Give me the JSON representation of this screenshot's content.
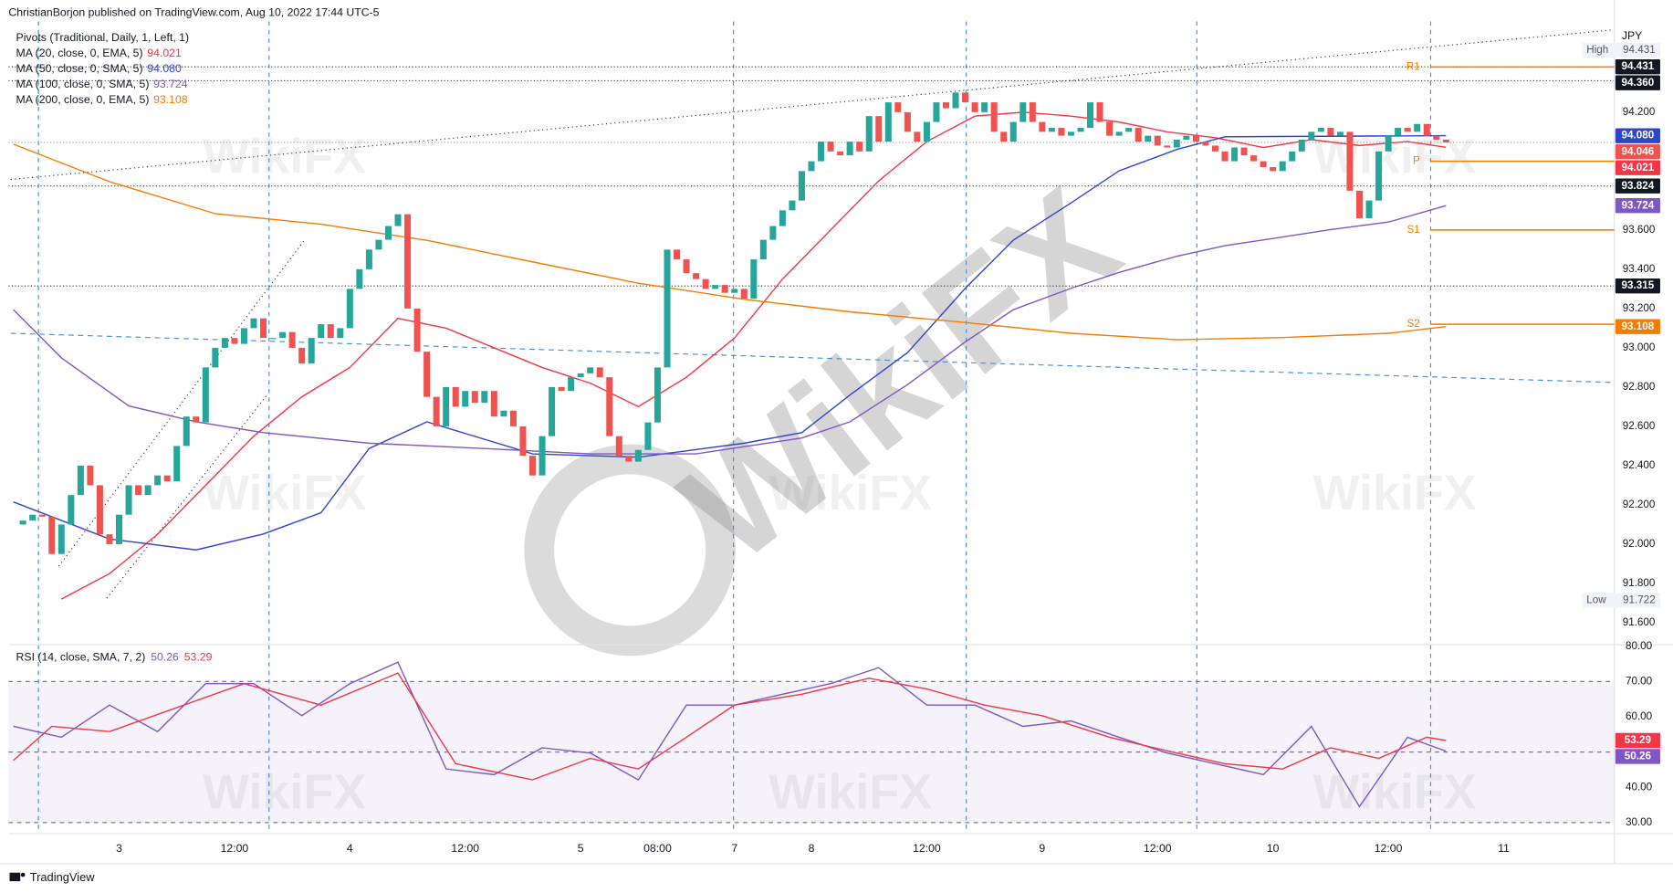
{
  "header": "ChristianBorjon published on TradingView.com, Aug 10, 2022 17:44 UTC-5",
  "footer_brand": "TradingView",
  "watermark": "WikiFX",
  "chart_data": [
    {
      "type": "candlestick",
      "currency": "JPY",
      "up_color": "#26a69a",
      "down_color": "#ef5350",
      "xlim": [
        -0.5,
        166.5
      ],
      "ylim": [
        91.491,
        94.771
      ],
      "closes": [
        92.1,
        92.12,
        92.15,
        92.14,
        91.95,
        92.1,
        92.25,
        92.4,
        92.3,
        92.05,
        92.0,
        92.15,
        92.3,
        92.25,
        92.3,
        92.35,
        92.32,
        92.5,
        92.65,
        92.62,
        92.9,
        93.0,
        93.05,
        93.02,
        93.1,
        93.15,
        93.05,
        93.05,
        93.08,
        93.0,
        92.92,
        93.05,
        93.12,
        93.05,
        93.1,
        93.3,
        93.4,
        93.5,
        93.55,
        93.62,
        93.68,
        93.2,
        92.98,
        92.75,
        92.6,
        92.8,
        92.7,
        92.78,
        92.72,
        92.78,
        92.65,
        92.68,
        92.6,
        92.45,
        92.35,
        92.55,
        92.8,
        92.78,
        92.85,
        92.87,
        92.9,
        92.85,
        92.55,
        92.45,
        92.42,
        92.48,
        92.62,
        92.9,
        93.5,
        93.45,
        93.38,
        93.35,
        93.3,
        93.32,
        93.28,
        93.3,
        93.25,
        93.45,
        93.55,
        93.62,
        93.7,
        93.75,
        93.9,
        93.95,
        94.05,
        94.0,
        93.98,
        94.05,
        94.0,
        94.18,
        94.05,
        94.25,
        94.2,
        94.1,
        94.05,
        94.15,
        94.25,
        94.22,
        94.3,
        94.25,
        94.2,
        94.25,
        94.1,
        94.05,
        94.15,
        94.25,
        94.15,
        94.1,
        94.12,
        94.08,
        94.1,
        94.12,
        94.25,
        94.15,
        94.08,
        94.1,
        94.12,
        94.05,
        94.08,
        94.03,
        94.02,
        94.06,
        94.08,
        94.05,
        94.03,
        94.0,
        93.95,
        94.02,
        93.98,
        93.95,
        93.92,
        93.9,
        93.95,
        94.0,
        94.06,
        94.1,
        94.12,
        94.08,
        94.1,
        93.8,
        93.66,
        93.75,
        94.0,
        94.08,
        94.12,
        94.1,
        94.14,
        94.08,
        94.06,
        94.046
      ],
      "xticks": [
        {
          "value": 11,
          "label": "3"
        },
        {
          "value": 23,
          "label": "12:00"
        },
        {
          "value": 35,
          "label": "4"
        },
        {
          "value": 47,
          "label": "12:00"
        },
        {
          "value": 59,
          "label": "5"
        },
        {
          "value": 67,
          "label": "08:00"
        },
        {
          "value": 75,
          "label": "7"
        },
        {
          "value": 83,
          "label": "8"
        },
        {
          "value": 95,
          "label": "12:00"
        },
        {
          "value": 107,
          "label": "9"
        },
        {
          "value": 119,
          "label": "12:00"
        },
        {
          "value": 131,
          "label": "10"
        },
        {
          "value": 143,
          "label": "12:00"
        },
        {
          "value": 155,
          "label": "11"
        }
      ],
      "yticks": [
        {
          "value": 94.2,
          "label": "94.200"
        },
        {
          "value": 93.6,
          "label": "93.600"
        },
        {
          "value": 93.4,
          "label": "93.400"
        },
        {
          "value": 93.2,
          "label": "93.200"
        },
        {
          "value": 93.0,
          "label": "93.000"
        },
        {
          "value": 92.8,
          "label": "92.800"
        },
        {
          "value": 92.6,
          "label": "92.600"
        },
        {
          "value": 92.4,
          "label": "92.400"
        },
        {
          "value": 92.2,
          "label": "92.200"
        },
        {
          "value": 92.0,
          "label": "92.000"
        },
        {
          "value": 91.8,
          "label": "91.800"
        },
        {
          "value": 91.6,
          "label": "91.600"
        }
      ],
      "pivots": {
        "name": "Pivots (Traditional, Daily, 1, Left, 1)",
        "color": "#f57c00",
        "levels": [
          {
            "label": "R1",
            "value": 94.43
          },
          {
            "label": "P",
            "value": 93.95
          },
          {
            "label": "S1",
            "value": 93.6
          },
          {
            "label": "S2",
            "value": 93.12
          }
        ]
      },
      "series": [
        {
          "name": "MA (20, close, 0, EMA, 5)",
          "color": "#f23645",
          "current": 94.021,
          "x": [
            5,
            10,
            15,
            20,
            25,
            30,
            35,
            40,
            45,
            50,
            55,
            60,
            65,
            70,
            75,
            80,
            85,
            90,
            95,
            100,
            105,
            110,
            115,
            120,
            125,
            130,
            135,
            140,
            145,
            149
          ],
          "values": [
            91.72,
            91.85,
            92.05,
            92.3,
            92.55,
            92.75,
            92.9,
            93.15,
            93.1,
            93.0,
            92.9,
            92.82,
            92.7,
            92.85,
            93.05,
            93.35,
            93.6,
            93.85,
            94.05,
            94.18,
            94.2,
            94.18,
            94.15,
            94.1,
            94.07,
            94.02,
            94.06,
            94.03,
            94.05,
            94.021
          ]
        },
        {
          "name": "MA (50, close, 0, SMA, 5)",
          "color": "#2f45c8",
          "current": {
            "value": 94.08,
            "label": "94.080"
          },
          "x": [
            0,
            10,
            19,
            26,
            32,
            37,
            43,
            54,
            65,
            76,
            82,
            87,
            93,
            99,
            104,
            110,
            115,
            121,
            126,
            149
          ],
          "values": [
            92.215,
            92.026,
            91.971,
            92.052,
            92.16,
            92.487,
            92.623,
            92.46,
            92.443,
            92.514,
            92.568,
            92.759,
            92.976,
            93.303,
            93.548,
            93.738,
            93.901,
            94.01,
            94.075,
            94.08
          ]
        },
        {
          "name": "MA (100, close, 0, SMA, 5)",
          "color": "#7e57c2",
          "current": 93.724,
          "x": [
            0,
            5,
            12,
            19,
            26,
            37,
            49,
            60,
            71,
            82,
            87,
            93,
            99,
            104,
            110,
            115,
            121,
            126,
            132,
            137,
            143,
            149
          ],
          "values": [
            93.194,
            92.949,
            92.704,
            92.623,
            92.568,
            92.514,
            92.487,
            92.46,
            92.46,
            92.541,
            92.623,
            92.813,
            93.03,
            93.194,
            93.303,
            93.384,
            93.466,
            93.52,
            93.564,
            93.602,
            93.64,
            93.724
          ]
        },
        {
          "name": "MA (200, close, 0, EMA, 5)",
          "color": "#f57c00",
          "current": 93.108,
          "x": [
            0,
            10,
            21,
            32,
            43,
            54,
            65,
            76,
            87,
            99,
            110,
            121,
            132,
            143,
            149
          ],
          "values": [
            94.037,
            93.846,
            93.683,
            93.629,
            93.547,
            93.438,
            93.329,
            93.247,
            93.183,
            93.129,
            93.074,
            93.041,
            93.052,
            93.074,
            93.108
          ]
        }
      ],
      "levels": [
        94.431,
        {
          "value": 94.36,
          "label": "94.360"
        },
        93.824,
        93.315
      ],
      "last_price": {
        "value": 94.046,
        "color": "#ef5350"
      },
      "high": {
        "label": "High",
        "value": 94.431
      },
      "low": {
        "label": "Low",
        "value": 91.722
      }
    },
    {
      "type": "line",
      "title": "RSI (14, close, SMA, 7, 2)",
      "xlim": [
        -0.5,
        166.5
      ],
      "ylim": [
        27,
        80
      ],
      "yticks": [
        {
          "value": 80,
          "label": "80.00"
        },
        {
          "value": 70,
          "label": "70.00"
        },
        {
          "value": 60,
          "label": "60.00"
        },
        {
          "value": 40,
          "label": "40.00"
        },
        {
          "value": 30,
          "label": "30.00"
        }
      ],
      "bands": {
        "upper": 70,
        "middle": 50,
        "lower": 30,
        "fill": "#7e57c2"
      },
      "series": [
        {
          "name": "RSI",
          "color": "#7e57c2",
          "current": 50.26,
          "x": [
            0,
            5,
            10,
            15,
            20,
            25,
            30,
            35,
            40,
            45,
            50,
            55,
            60,
            65,
            70,
            75,
            80,
            85,
            90,
            95,
            100,
            105,
            110,
            115,
            120,
            125,
            130,
            135,
            140,
            145,
            149
          ],
          "values": [
            57.3,
            54.2,
            63.3,
            55.8,
            69.4,
            69.4,
            60.3,
            69.4,
            75.5,
            45.2,
            43.6,
            51.2,
            49.7,
            42.1,
            63.3,
            63.3,
            66.4,
            69.4,
            73.9,
            63.3,
            63.3,
            57.3,
            58.8,
            54.2,
            49.7,
            46.7,
            43.6,
            57.3,
            34.5,
            54.2,
            50.26
          ]
        },
        {
          "name": "RSI MA",
          "color": "#f23645",
          "current": 53.29,
          "x": [
            0,
            4,
            10,
            24,
            32,
            40,
            46,
            54,
            60,
            65,
            70,
            75,
            82,
            89,
            95,
            101,
            107,
            114,
            121,
            126,
            132,
            137,
            142,
            147,
            149
          ],
          "values": [
            47.6,
            57.3,
            55.8,
            69.4,
            63.3,
            72.4,
            46.7,
            42.1,
            48.2,
            45.2,
            54.2,
            63.3,
            66.4,
            70.9,
            67.9,
            63.3,
            60.3,
            54.2,
            49.7,
            46.7,
            45.2,
            51.2,
            48.2,
            54.2,
            53.29
          ]
        }
      ]
    }
  ]
}
